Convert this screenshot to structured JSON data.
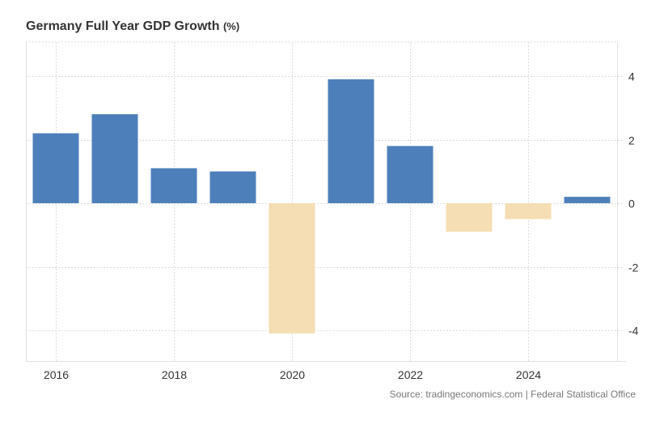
{
  "chart_data": {
    "type": "bar",
    "title": "Germany Full Year GDP Growth",
    "title_unit": "(%)",
    "xlabel": "",
    "ylabel": "",
    "categories": [
      "2016",
      "2017",
      "2018",
      "2019",
      "2020",
      "2021",
      "2022",
      "2023",
      "2024",
      "2025"
    ],
    "values": [
      2.2,
      2.8,
      1.1,
      1.0,
      -4.1,
      3.9,
      1.8,
      -0.9,
      -0.5,
      0.2
    ],
    "ylim": [
      -5,
      5
    ],
    "y_ticks": [
      4,
      2,
      0,
      -2,
      -4
    ],
    "y_tick_labels": [
      "4",
      "2",
      "0",
      "-2",
      "-4"
    ],
    "x_tick_labels": [
      "2016",
      "2018",
      "2020",
      "2022",
      "2024"
    ],
    "x_tick_years": [
      2016,
      2018,
      2020,
      2022,
      2024
    ],
    "y_axis_side": "right",
    "grid": true,
    "legend": "none",
    "colors": {
      "positive": "#4d80bb",
      "negative": "#f5deb3",
      "grid": "#dddddd",
      "axis": "#e0e0e0"
    }
  },
  "source": "Source: tradingeconomics.com | Federal Statistical Office"
}
